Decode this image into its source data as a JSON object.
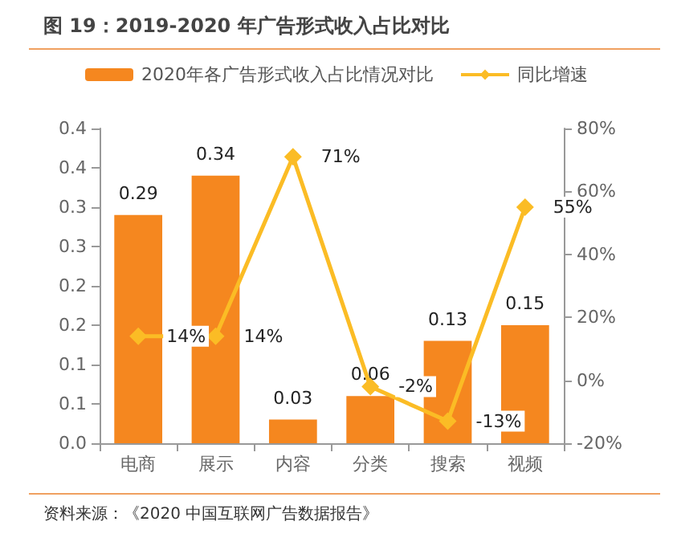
{
  "chart_data": {
    "type": "bar",
    "title": "图 19：2019-2020 年广告形式收入占比对比",
    "categories": [
      "电商",
      "展示",
      "内容",
      "分类",
      "搜索",
      "视频"
    ],
    "series": [
      {
        "name": "2020年各广告形式收入占比情况对比",
        "color": "#f5871f",
        "values": [
          0.29,
          0.34,
          0.03,
          0.06,
          0.13,
          0.15
        ],
        "data_labels": true
      },
      {
        "name": "同比增速",
        "type": "line",
        "axis": "y2",
        "color": "#fbbc25",
        "values": [
          14,
          14,
          71,
          -2,
          -13,
          55
        ],
        "value_labels": [
          "14%",
          "14%",
          "71%",
          "-2%",
          "-13%",
          "55%"
        ],
        "marker": "diamond"
      }
    ],
    "ylim": [
      0,
      0.4
    ],
    "yticks": [
      {
        "value": 0,
        "label": "0.0"
      },
      {
        "value": 0.05,
        "label": "0.1"
      },
      {
        "value": 0.1,
        "label": "0.1"
      },
      {
        "value": 0.15,
        "label": "0.2"
      },
      {
        "value": 0.2,
        "label": "0.2"
      },
      {
        "value": 0.25,
        "label": "0.3"
      },
      {
        "value": 0.3,
        "label": "0.3"
      },
      {
        "value": 0.35,
        "label": "0.4"
      },
      {
        "value": 0.4,
        "label": "0.4"
      }
    ],
    "y2lim": [
      -20,
      80
    ],
    "y2ticks": [
      {
        "value": -20,
        "label": "-20%"
      },
      {
        "value": 0,
        "label": "0%"
      },
      {
        "value": 20,
        "label": "20%"
      },
      {
        "value": 40,
        "label": "40%"
      },
      {
        "value": 60,
        "label": "60%"
      },
      {
        "value": 80,
        "label": "80%"
      }
    ],
    "legend": "top",
    "grid": false,
    "annotations": [
      "资料来源：《2020 中国互联网广告数据报告》"
    ]
  }
}
